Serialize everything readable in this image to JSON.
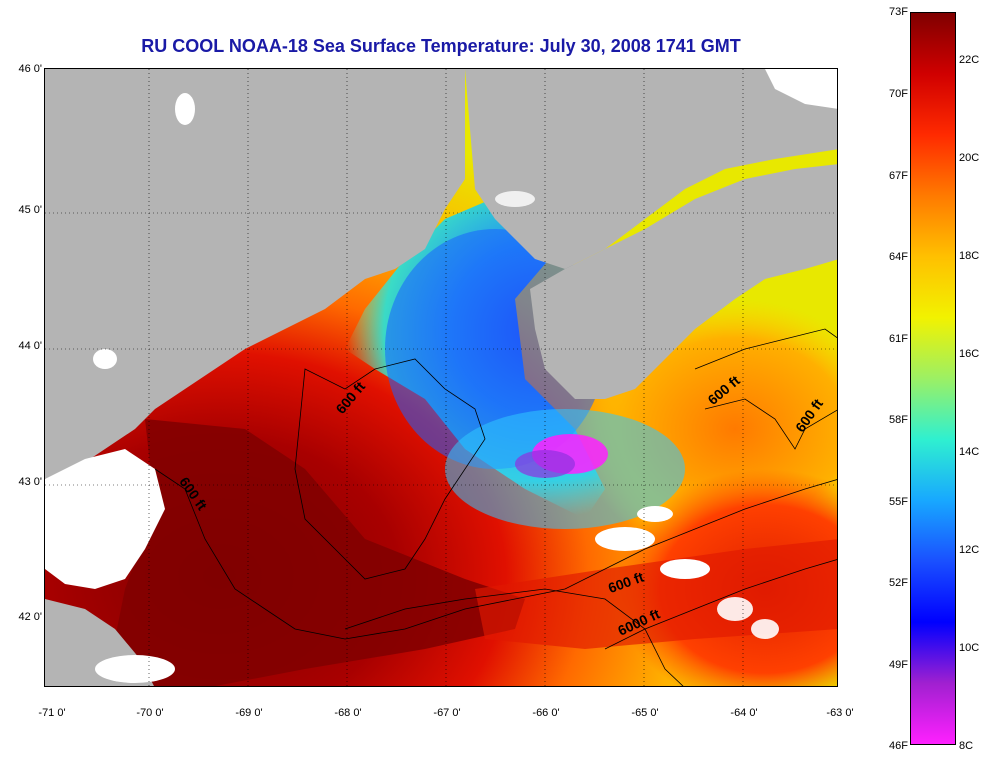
{
  "title": "RU COOL  NOAA-18  Sea Surface Temperature:  July 30, 2008 1741 GMT",
  "lat_labels": [
    "46 0'",
    "45 0'",
    "44 0'",
    "43 0'",
    "42 0'"
  ],
  "lon_labels": [
    "-71 0'",
    "-70 0'",
    "-69 0'",
    "-68 0'",
    "-67 0'",
    "-66 0'",
    "-65 0'",
    "-64 0'",
    "-63 0'"
  ],
  "colorbar": {
    "fahrenheit": [
      "73F",
      "70F",
      "67F",
      "64F",
      "61F",
      "58F",
      "55F",
      "52F",
      "49F",
      "46F"
    ],
    "celsius": [
      "22C",
      "20C",
      "18C",
      "16C",
      "14C",
      "12C",
      "10C",
      "8C"
    ],
    "colors": [
      "#800000",
      "#d00000",
      "#ff2a00",
      "#ff7a00",
      "#ffc000",
      "#f2f200",
      "#9cf064",
      "#2ff0d0",
      "#18a8ff",
      "#1a50ff",
      "#0000ff",
      "#a020d0",
      "#ff20ff"
    ]
  },
  "contour_labels": [
    {
      "text": "600 ft",
      "rotate": -50
    },
    {
      "text": "600 ft",
      "rotate": -40
    },
    {
      "text": "600 ft",
      "rotate": -55
    },
    {
      "text": "600 ft",
      "rotate": 55
    },
    {
      "text": "600 ft",
      "rotate": -20
    },
    {
      "text": "6000 ft",
      "rotate": -25
    }
  ],
  "palette": {
    "land": "#b4b4b4",
    "cloud": "#ffffff",
    "title": "#1a1aa6"
  }
}
